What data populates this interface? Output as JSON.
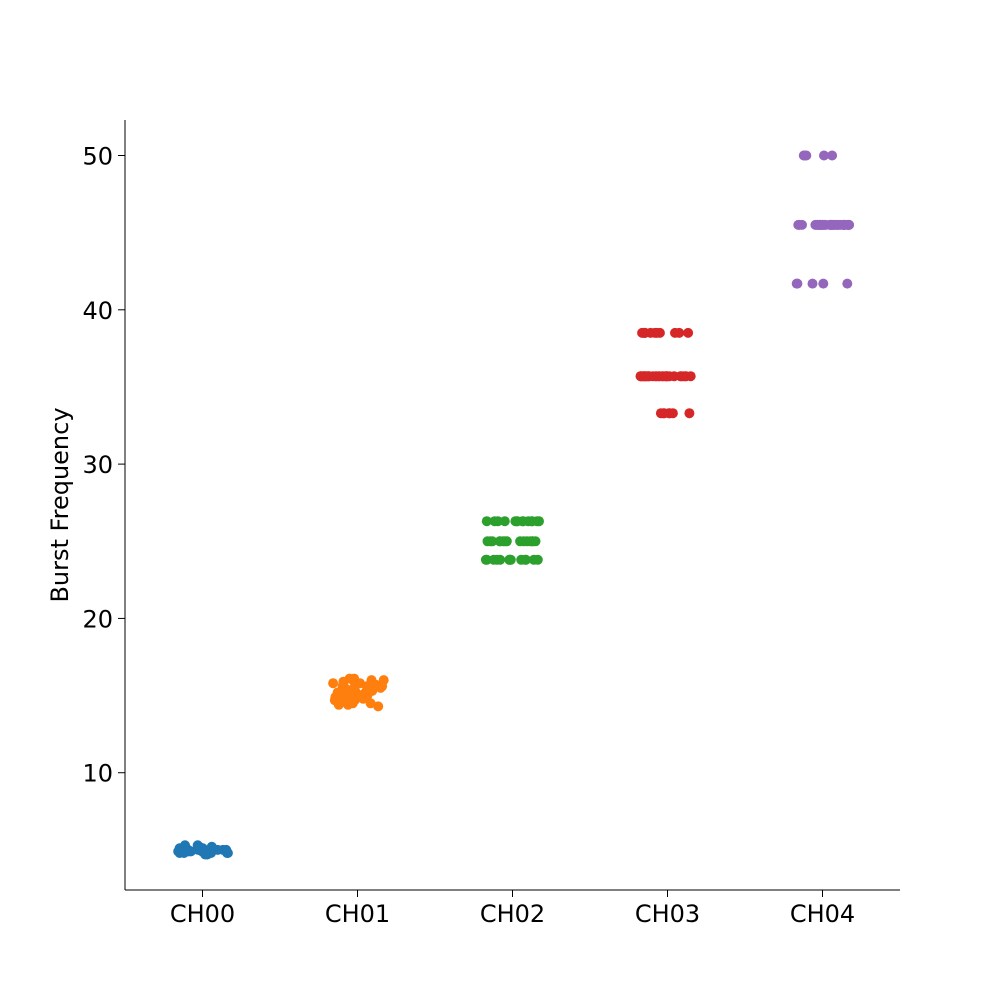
{
  "chart_data": {
    "type": "scatter",
    "subtype": "strip",
    "title": "",
    "xlabel": "",
    "ylabel": "Burst Frequency",
    "ylim": [
      2.4,
      52.3
    ],
    "yticks": [
      10,
      20,
      30,
      40,
      50
    ],
    "grid": false,
    "legend": "none",
    "categories": [
      "CH00",
      "CH01",
      "CH02",
      "CH03",
      "CH04"
    ],
    "series": [
      {
        "category": "CH00",
        "color": "#1f77b4",
        "levels": [
          4.7,
          4.9,
          5.0,
          5.2,
          5.4
        ],
        "values": [
          4.9,
          4.8,
          5.0,
          4.9,
          5.2,
          5.1,
          4.8,
          5.0,
          4.7,
          5.3,
          4.9,
          5.0,
          4.8,
          5.1,
          4.9,
          5.0,
          5.2,
          4.8,
          4.9,
          5.0,
          5.3,
          4.9,
          5.0,
          4.8,
          4.9,
          5.1,
          4.8,
          4.9,
          5.0,
          4.7
        ]
      },
      {
        "category": "CH01",
        "color": "#ff7f0e",
        "levels": [
          14.3,
          14.6,
          14.9,
          15.2,
          15.4,
          15.6,
          15.9,
          16.1
        ],
        "values": [
          15.6,
          15.2,
          14.9,
          16.0,
          15.4,
          14.6,
          15.8,
          15.1,
          14.4,
          15.3,
          16.1,
          15.0,
          14.7,
          15.5,
          15.9,
          14.3,
          15.2,
          15.7,
          14.8,
          15.4,
          16.0,
          15.1,
          14.6,
          15.6,
          15.3,
          14.9,
          15.8,
          14.5,
          15.0,
          15.2,
          15.6,
          14.4,
          15.9,
          15.1,
          15.3,
          15.7,
          14.7,
          16.1,
          15.5,
          15.0,
          14.5,
          15.2
        ]
      },
      {
        "category": "CH02",
        "color": "#2ca02c",
        "levels": [
          23.8,
          25.0,
          26.3
        ],
        "values": [
          23.8,
          25.0,
          26.3,
          23.8,
          25.0,
          26.3,
          23.8,
          25.0,
          26.3,
          23.8,
          25.0,
          26.3,
          23.8,
          25.0,
          26.3,
          23.8,
          25.0,
          26.3,
          23.8,
          25.0,
          26.3,
          23.8,
          25.0,
          26.3,
          23.8,
          25.0,
          26.3,
          23.8,
          25.0,
          26.3,
          23.8,
          25.0,
          26.3,
          23.8,
          25.0,
          26.3,
          23.8,
          25.0,
          26.3,
          25.0,
          26.3,
          25.0
        ]
      },
      {
        "category": "CH03",
        "color": "#d62728",
        "levels": [
          33.3,
          35.7,
          38.5
        ],
        "values": [
          35.7,
          35.7,
          35.7,
          35.7,
          35.7,
          35.7,
          35.7,
          35.7,
          35.7,
          35.7,
          35.7,
          35.7,
          35.7,
          35.7,
          35.7,
          35.7,
          35.7,
          35.7,
          35.7,
          35.7,
          35.7,
          35.7,
          35.7,
          35.7,
          35.7,
          35.7,
          35.7,
          35.7,
          35.7,
          35.7,
          38.5,
          38.5,
          38.5,
          38.5,
          38.5,
          38.5,
          38.5,
          38.5,
          38.5,
          38.5,
          38.5,
          33.3,
          33.3,
          33.3,
          33.3,
          33.3,
          33.3,
          33.3
        ]
      },
      {
        "category": "CH04",
        "color": "#9467bd",
        "levels": [
          41.7,
          45.5,
          50.0
        ],
        "values": [
          45.5,
          45.5,
          45.5,
          45.5,
          45.5,
          45.5,
          45.5,
          45.5,
          45.5,
          45.5,
          45.5,
          45.5,
          45.5,
          45.5,
          45.5,
          45.5,
          45.5,
          45.5,
          45.5,
          45.5,
          45.5,
          45.5,
          45.5,
          45.5,
          45.5,
          45.5,
          45.5,
          45.5,
          45.5,
          45.5,
          45.5,
          45.5,
          45.5,
          45.5,
          45.5,
          50.0,
          50.0,
          50.0,
          50.0,
          50.0,
          41.7,
          41.7,
          41.7,
          41.7,
          41.7
        ]
      }
    ]
  }
}
